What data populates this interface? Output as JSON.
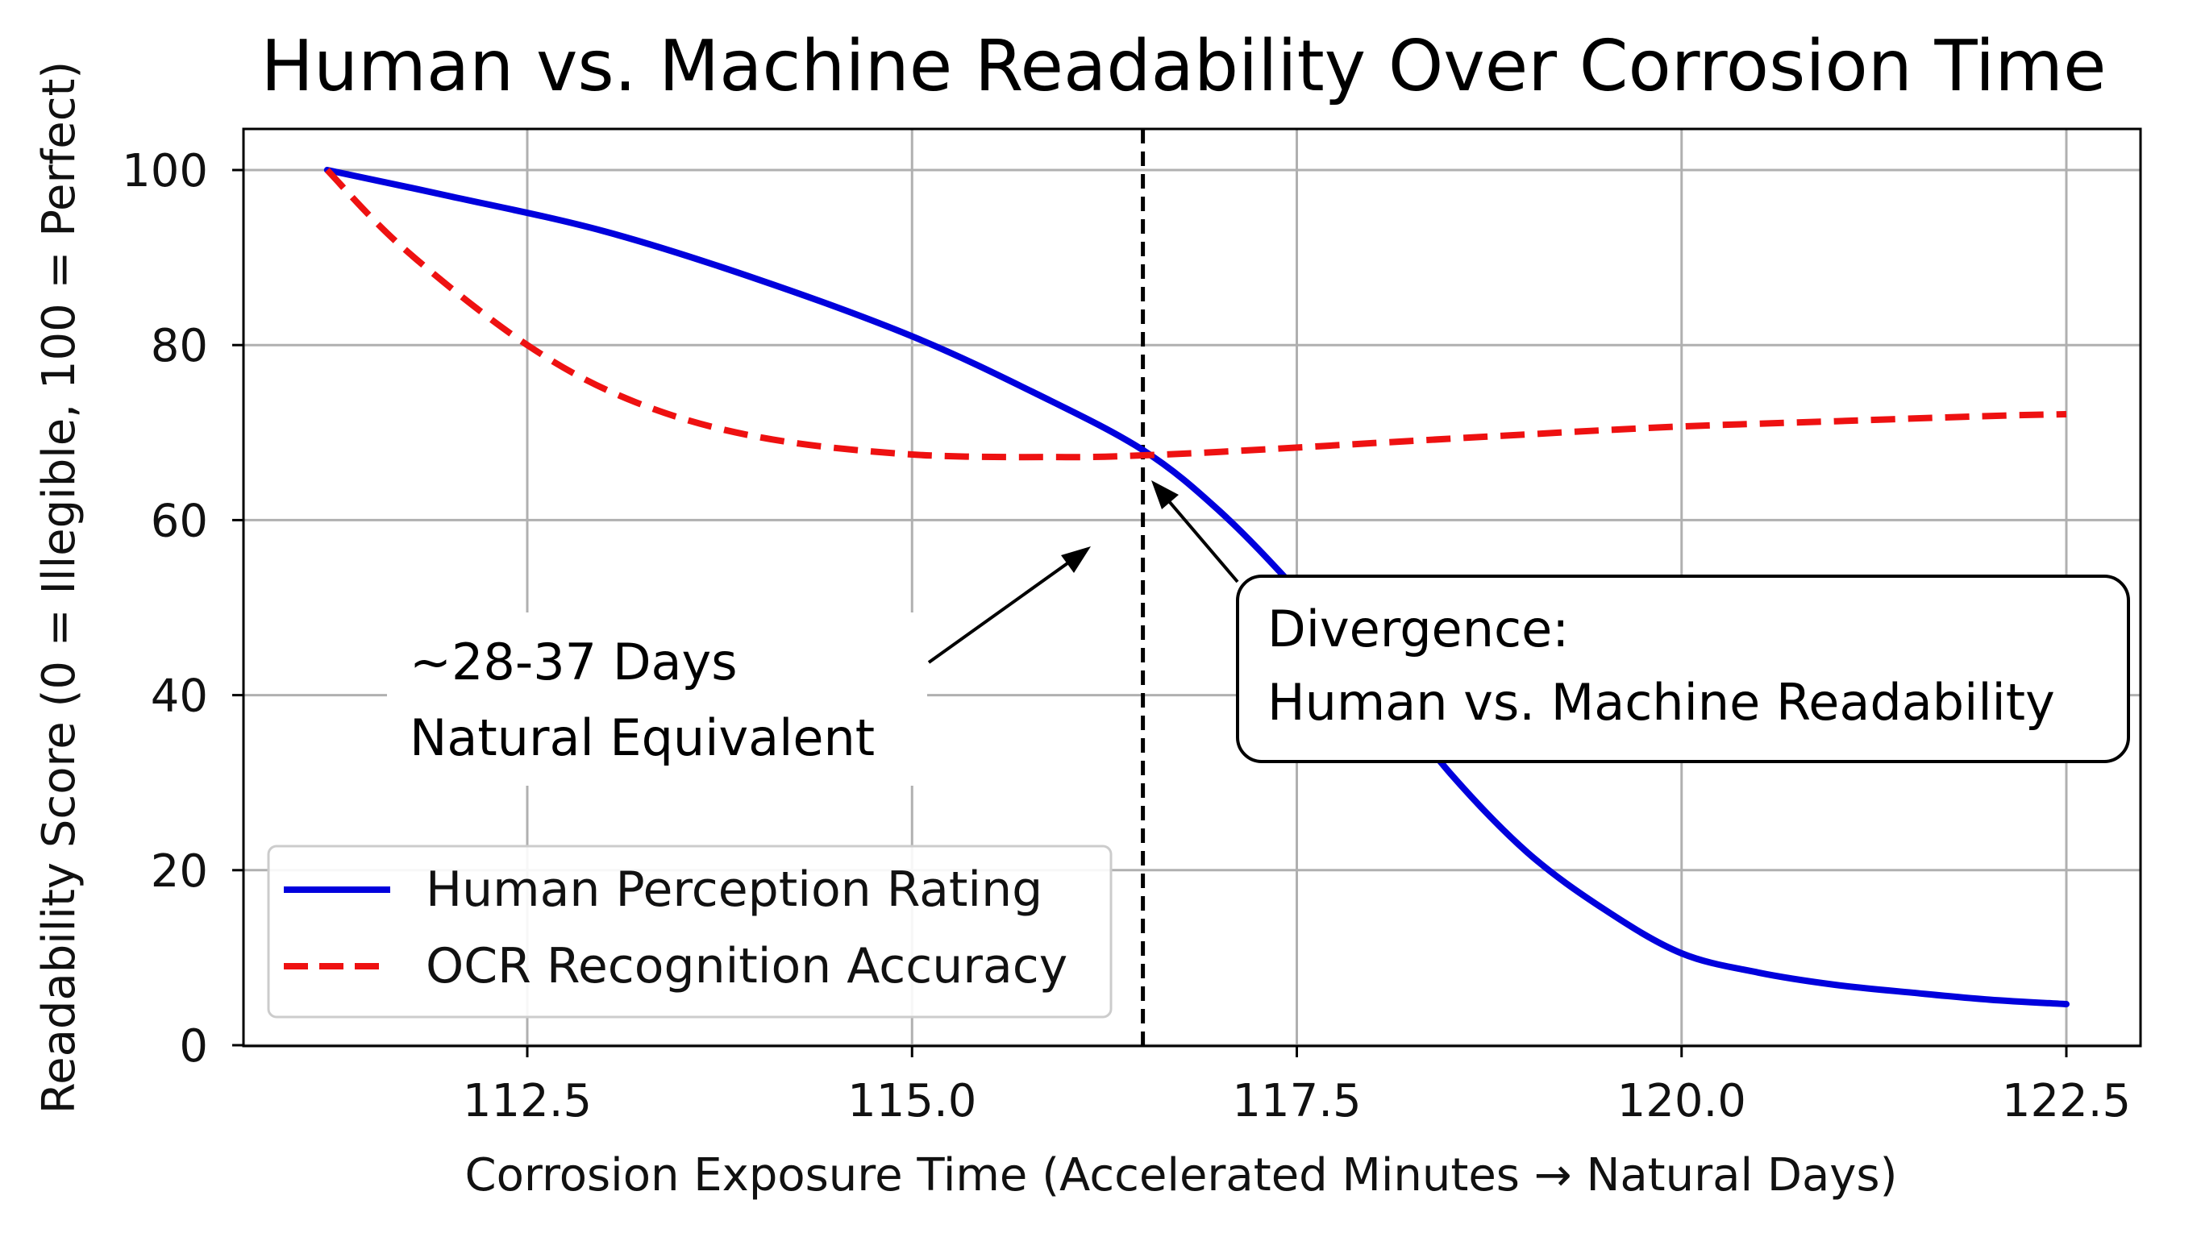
{
  "chart_data": {
    "type": "line",
    "title": "Human vs. Machine Readability Over Corrosion Time",
    "xlabel": "Corrosion Exposure Time (Accelerated Minutes → Natural Days)",
    "ylabel": "Readability Score (0 = Illegible, 100 = Perfect)",
    "xlim": [
      110.8,
      123.0
    ],
    "ylim": [
      0,
      100
    ],
    "xticks": [
      112.5,
      115.0,
      117.5,
      120.0,
      122.5
    ],
    "xtick_labels": [
      "112.5",
      "115.0",
      "117.5",
      "120.0",
      "122.5"
    ],
    "yticks": [
      0,
      20,
      40,
      60,
      80,
      100
    ],
    "ytick_labels": [
      "0",
      "20",
      "40",
      "60",
      "80",
      "100"
    ],
    "grid": true,
    "legend_position": "lower-left",
    "series": [
      {
        "name": "Human Perception Rating",
        "color": "#0000dd",
        "style": "solid",
        "x": [
          111.2,
          112.0,
          113.0,
          114.0,
          115.0,
          115.8,
          116.5,
          117.0,
          117.5,
          118.0,
          118.5,
          119.0,
          119.5,
          120.0,
          120.5,
          121.0,
          121.5,
          122.0,
          122.5
        ],
        "y": [
          100,
          97,
          93,
          87.5,
          81,
          74.5,
          68,
          61,
          52,
          42,
          31,
          22,
          15.5,
          10.5,
          8.3,
          6.9,
          6.0,
          5.2,
          4.7
        ]
      },
      {
        "name": "OCR Recognition Accuracy",
        "color": "#ee1111",
        "style": "dashed",
        "x": [
          111.2,
          111.7,
          112.5,
          113.2,
          114.0,
          115.0,
          116.0,
          116.5,
          117.0,
          118.0,
          119.0,
          120.0,
          121.0,
          122.0,
          122.5
        ],
        "y": [
          100,
          91,
          80,
          73.5,
          69.5,
          67.5,
          67.2,
          67.4,
          67.8,
          68.8,
          69.8,
          70.7,
          71.3,
          71.9,
          72.1
        ]
      }
    ],
    "vline": {
      "x": 116.5,
      "style": "dashed",
      "color": "#000000"
    },
    "annotations": [
      {
        "lines": [
          "~28-37 Days",
          "Natural Equivalent"
        ],
        "arrow_to": [
          116.2,
          57
        ]
      },
      {
        "lines": [
          "Divergence:",
          "Human vs. Machine Readability"
        ],
        "arrow_to": [
          116.6,
          65
        ]
      }
    ]
  }
}
